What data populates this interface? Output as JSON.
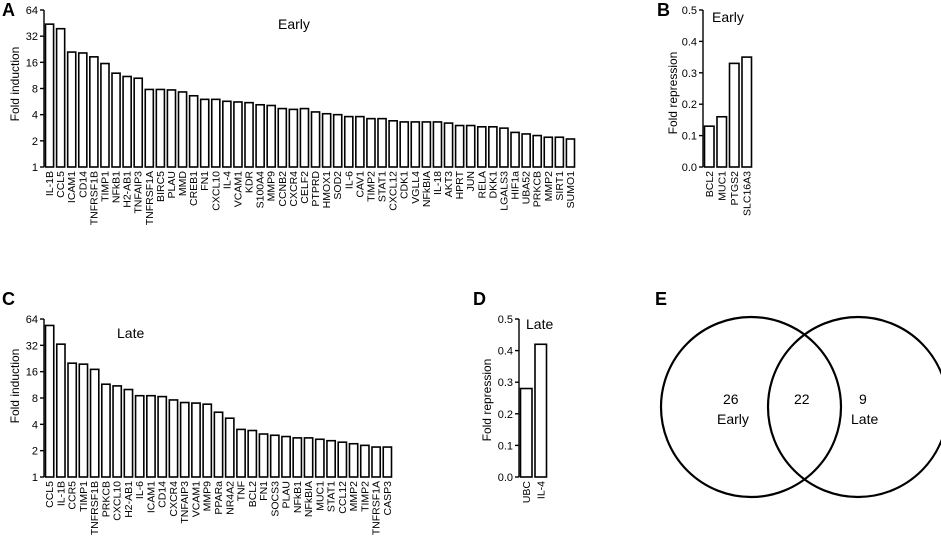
{
  "chart_data": [
    {
      "panel": "A",
      "type": "bar",
      "title": "Early",
      "ylabel": "Fold induction",
      "yscale": "log2",
      "ylim": [
        1,
        64
      ],
      "yticks": [
        "1",
        "2",
        "4",
        "8",
        "16",
        "32",
        "64"
      ],
      "categories": [
        "IL-1B",
        "CCL5",
        "ICAM1",
        "CD14",
        "TNFRSF1B",
        "TIMP1",
        "NFkB1",
        "H2-AB1",
        "TNFAIP3",
        "TNFRSF1A",
        "BIRC5",
        "PLAU",
        "MMD",
        "CREB1",
        "FN1",
        "CXCL10",
        "IL-4",
        "VCAM1",
        "KDR",
        "S100A4",
        "MMP9",
        "CCNB2",
        "CXCR4",
        "CELF2",
        "PTPRD",
        "HMOX1",
        "SOD2",
        "IL-6",
        "CAV1",
        "TIMP2",
        "STAT1",
        "CXCL12",
        "CDK1",
        "VGLL4",
        "NFkBIA",
        "IL-18",
        "AKT3",
        "HPRT",
        "JUN",
        "RELA",
        "DKK1",
        "LGALS3",
        "HIF1a",
        "UBA52",
        "PRKCB",
        "MMP2",
        "SIRT1",
        "SUMO1"
      ],
      "values": [
        44,
        39,
        21,
        20.5,
        18.5,
        15.5,
        12,
        11,
        10.5,
        7.8,
        7.8,
        7.7,
        7.3,
        6.6,
        6,
        6,
        5.7,
        5.6,
        5.5,
        5.2,
        5.1,
        4.7,
        4.6,
        4.7,
        4.3,
        4.1,
        4,
        3.8,
        3.8,
        3.6,
        3.6,
        3.4,
        3.3,
        3.3,
        3.3,
        3.3,
        3.2,
        3,
        3,
        2.9,
        2.9,
        2.8,
        2.5,
        2.4,
        2.3,
        2.2,
        2.2,
        2.1
      ]
    },
    {
      "panel": "B",
      "type": "bar",
      "title": "Early",
      "ylabel": "Fold repression",
      "yscale": "linear",
      "ylim": [
        0,
        0.5
      ],
      "yticks": [
        "0.0",
        "0.1",
        "0.2",
        "0.3",
        "0.4",
        "0.5"
      ],
      "categories": [
        "BCL2",
        "MUC1",
        "PTGS2",
        "SLC16A3"
      ],
      "values": [
        0.13,
        0.16,
        0.33,
        0.35
      ]
    },
    {
      "panel": "C",
      "type": "bar",
      "title": "Late",
      "ylabel": "Fold induction",
      "yscale": "log2",
      "ylim": [
        1,
        64
      ],
      "yticks": [
        "1",
        "2",
        "4",
        "8",
        "16",
        "32",
        "64"
      ],
      "categories": [
        "CCL5",
        "IL-1B",
        "CCR5",
        "TIMP1",
        "TNFRSF1B",
        "PRKCB",
        "CXCL10",
        "H2-AB1",
        "IL-6",
        "ICAM1",
        "CD14",
        "CXCR4",
        "TNFAIP3",
        "VCAM1",
        "MMP9",
        "PPARa",
        "NR4A2",
        "TNF",
        "BCL2",
        "FN1",
        "SOCS3",
        "PLAU",
        "NFkB1",
        "NFkBIA",
        "MUC1",
        "STAT1",
        "CCL12",
        "MMP2",
        "TIMP2",
        "TNFRSF1A",
        "CASP3"
      ],
      "values": [
        54,
        33,
        20,
        19.5,
        17,
        11.5,
        11,
        10,
        8.5,
        8.5,
        8.3,
        7.6,
        7.1,
        7,
        6.8,
        5.5,
        4.7,
        3.5,
        3.4,
        3.1,
        3,
        2.9,
        2.8,
        2.8,
        2.7,
        2.6,
        2.5,
        2.4,
        2.3,
        2.2,
        2.2
      ]
    },
    {
      "panel": "D",
      "type": "bar",
      "title": "Late",
      "ylabel": "Fold repression",
      "yscale": "linear",
      "ylim": [
        0,
        0.5
      ],
      "yticks": [
        "0.0",
        "0.1",
        "0.2",
        "0.3",
        "0.4",
        "0.5"
      ],
      "categories": [
        "UBC",
        "IL-4"
      ],
      "values": [
        0.28,
        0.42
      ]
    }
  ],
  "venn": {
    "panel": "E",
    "left_only": "26",
    "left_label": "Early",
    "overlap": "22",
    "right_only": "9",
    "right_label": "Late"
  }
}
